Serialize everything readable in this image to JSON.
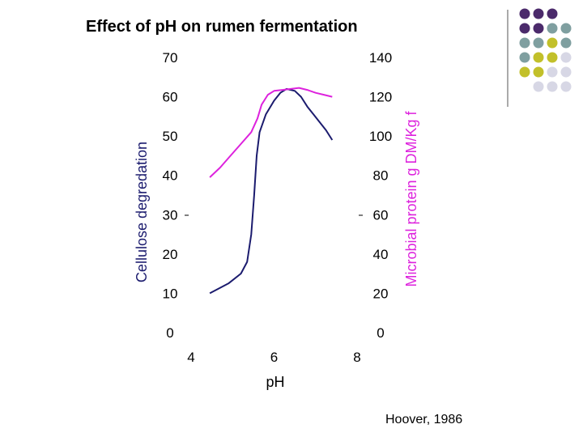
{
  "slide": {
    "title": "Effect of pH on rumen fermentation",
    "citation": "Hoover,  1986"
  },
  "decor": {
    "dot_colors": [
      "#4b2a6b",
      "#7f9fa0",
      "#c2c02a",
      "#d7d7e5"
    ],
    "rule_color": "#555555"
  },
  "chart_data": {
    "type": "line",
    "title": "Effect of pH on rumen fermentation",
    "xlabel": "pH",
    "ylabel_left": "Cellulose degredation",
    "ylabel_right": "Microbial protein g DM/Kg f",
    "xlim": [
      4,
      8
    ],
    "xticks": [
      "4",
      "6",
      "8"
    ],
    "ylim_left": [
      0,
      70
    ],
    "yticks_left": [
      "0",
      "10",
      "20",
      "30",
      "40",
      "50",
      "60",
      "70"
    ],
    "ylim_right": [
      0,
      140
    ],
    "yticks_right": [
      "0",
      "20",
      "40",
      "60",
      "80",
      "100",
      "120",
      "140"
    ],
    "grid": false,
    "series": [
      {
        "axis": "left",
        "color": "#1b1b6e",
        "x": [
          4.45,
          4.9,
          5.2,
          5.35,
          5.45,
          5.52,
          5.58,
          5.65,
          5.8,
          6.0,
          6.15,
          6.3,
          6.5,
          6.65,
          6.8,
          6.95,
          7.1,
          7.25,
          7.4
        ],
        "y": [
          10,
          12.5,
          15,
          18,
          25,
          35,
          45,
          51,
          55.5,
          59,
          61,
          62,
          61.5,
          60,
          57.5,
          55.5,
          53.5,
          51.5,
          49
        ]
      },
      {
        "axis": "right",
        "color": "#dd22dd",
        "x": [
          4.45,
          4.7,
          4.95,
          5.2,
          5.45,
          5.6,
          5.7,
          5.85,
          6.0,
          6.2,
          6.4,
          6.6,
          6.8,
          7.0,
          7.2,
          7.4
        ],
        "y": [
          79,
          84,
          90,
          96,
          102,
          109,
          116,
          121,
          123,
          123.5,
          124,
          124.5,
          123.5,
          122,
          121,
          120
        ]
      }
    ]
  }
}
